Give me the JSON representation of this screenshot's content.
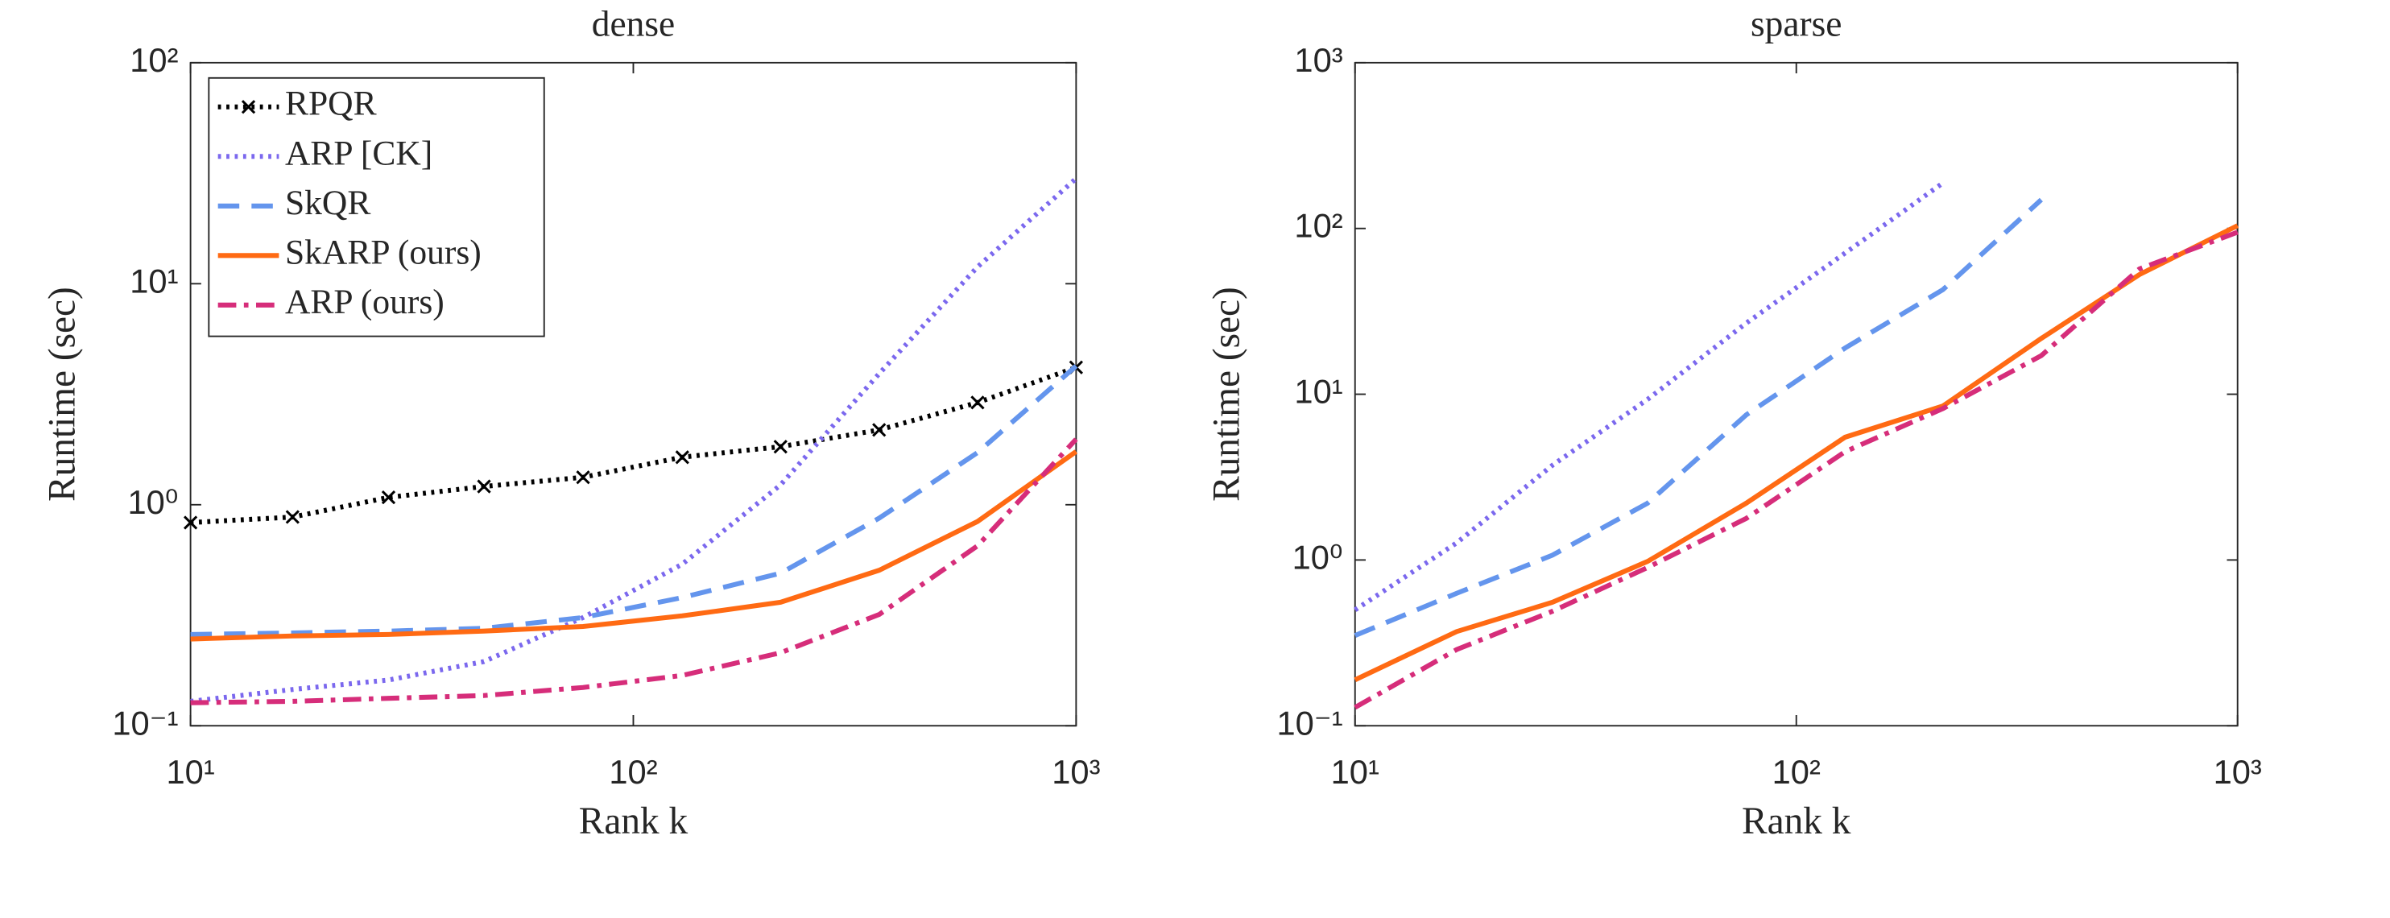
{
  "chart_data": [
    {
      "type": "line",
      "title": "dense",
      "xlabel": "Rank k",
      "ylabel": "Runtime (sec)",
      "xscale": "log",
      "yscale": "log",
      "x": [
        10,
        17,
        28,
        46,
        77,
        129,
        215,
        359,
        599,
        1000
      ],
      "xlim": [
        10,
        1000
      ],
      "ylim": [
        0.1,
        100
      ],
      "xticks": [
        {
          "value": 10,
          "label": "10¹"
        },
        {
          "value": 100,
          "label": "10²"
        },
        {
          "value": 1000,
          "label": "10³"
        }
      ],
      "yticks": [
        {
          "value": 0.1,
          "label": "10⁻¹"
        },
        {
          "value": 1,
          "label": "10⁰"
        },
        {
          "value": 10,
          "label": "10¹"
        },
        {
          "value": 100,
          "label": "10²"
        }
      ],
      "legend": "upper left",
      "series": [
        {
          "name": "RPQR",
          "color": "#000000",
          "linestyle": "dotted",
          "marker": "x",
          "values": [
            0.83,
            0.88,
            1.08,
            1.21,
            1.33,
            1.64,
            1.83,
            2.18,
            2.9,
            4.18
          ]
        },
        {
          "name": "ARP [CK]",
          "color": "#7b68ee",
          "linestyle": "dotted",
          "values": [
            0.129,
            0.146,
            0.161,
            0.195,
            0.309,
            0.538,
            1.23,
            3.92,
            11.9,
            29.9
          ]
        },
        {
          "name": "SkQR",
          "color": "#6495ed",
          "linestyle": "dashed",
          "values": [
            0.259,
            0.263,
            0.268,
            0.276,
            0.309,
            0.38,
            0.49,
            0.87,
            1.72,
            4.24
          ]
        },
        {
          "name": "SkARP (ours)",
          "color": "#ff6a13",
          "linestyle": "solid",
          "values": [
            0.247,
            0.255,
            0.259,
            0.268,
            0.281,
            0.314,
            0.362,
            0.505,
            0.84,
            1.74
          ]
        },
        {
          "name": "ARP (ours)",
          "color": "#d62d7a",
          "linestyle": "dashdot",
          "values": [
            0.127,
            0.129,
            0.133,
            0.137,
            0.149,
            0.169,
            0.214,
            0.319,
            0.651,
            1.98
          ]
        }
      ]
    },
    {
      "type": "line",
      "title": "sparse",
      "xlabel": "Rank k",
      "ylabel": "Runtime (sec)",
      "xscale": "log",
      "yscale": "log",
      "x": [
        10,
        17,
        28,
        46,
        77,
        129,
        215,
        359,
        599,
        1000
      ],
      "xlim": [
        10,
        1000
      ],
      "ylim": [
        0.1,
        1000
      ],
      "xticks": [
        {
          "value": 10,
          "label": "10¹"
        },
        {
          "value": 100,
          "label": "10²"
        },
        {
          "value": 1000,
          "label": "10³"
        }
      ],
      "yticks": [
        {
          "value": 0.1,
          "label": "10⁻¹"
        },
        {
          "value": 1,
          "label": "10⁰"
        },
        {
          "value": 10,
          "label": "10¹"
        },
        {
          "value": 100,
          "label": "10²"
        },
        {
          "value": 1000,
          "label": "10³"
        }
      ],
      "series": [
        {
          "color": "#7b68ee",
          "linestyle": "dotted",
          "values": [
            0.5,
            1.27,
            3.73,
            9.3,
            26.8,
            71,
            188,
            null,
            null,
            null
          ]
        },
        {
          "color": "#6495ed",
          "linestyle": "dashed",
          "values": [
            0.35,
            0.63,
            1.07,
            2.2,
            7.5,
            19,
            42.7,
            149,
            null,
            null
          ]
        },
        {
          "color": "#ff6a13",
          "linestyle": "solid",
          "values": [
            0.189,
            0.37,
            0.556,
            0.98,
            2.2,
            5.5,
            8.5,
            21.7,
            52.7,
            104
          ]
        },
        {
          "color": "#d62d7a",
          "linestyle": "dashdot",
          "values": [
            0.129,
            0.288,
            0.49,
            0.9,
            1.78,
            4.5,
            8.2,
            17.1,
            57,
            95
          ]
        }
      ]
    }
  ]
}
